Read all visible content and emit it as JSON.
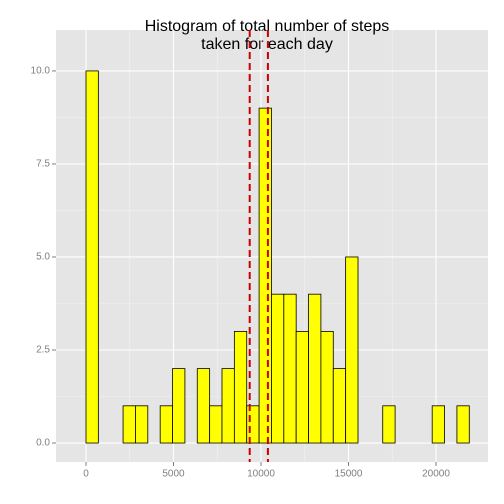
{
  "chart_data": {
    "type": "histogram",
    "title": [
      "Histogram of total number of steps",
      "taken for each day"
    ],
    "bins": [
      -706,
      0,
      706,
      1413,
      2119,
      2826,
      3532,
      4239,
      4945,
      5652,
      6358,
      7065,
      7771,
      8478,
      9184,
      9891,
      10597,
      11304,
      12010,
      12717,
      13423,
      14130,
      14836,
      15543,
      16249,
      16956,
      17662,
      18369,
      19075,
      19782,
      20488,
      21195,
      21901
    ],
    "values": [
      0,
      10,
      0,
      0,
      1,
      1,
      0,
      1,
      2,
      0,
      2,
      1,
      2,
      3,
      1,
      9,
      4,
      4,
      3,
      4,
      3,
      2,
      5,
      0,
      0,
      1,
      0,
      0,
      0,
      1,
      0,
      1
    ],
    "color": "#ffff00",
    "edge_color": "#000000",
    "reference_lines": [
      9354,
      10395
    ],
    "reference_color": "#cc0000",
    "xlim": [
      -1714,
      22971
    ],
    "xticks": [
      0,
      5000,
      10000,
      15000,
      20000
    ],
    "ylim": [
      -0.51,
      11.1
    ],
    "yticks": [
      {
        "value": 0,
        "label": "0.0"
      },
      {
        "value": 2.5,
        "label": "2.5"
      },
      {
        "value": 5,
        "label": "5.0"
      },
      {
        "value": 7.5,
        "label": "7.5"
      },
      {
        "value": 10,
        "label": "10.0"
      }
    ],
    "grid": true
  }
}
